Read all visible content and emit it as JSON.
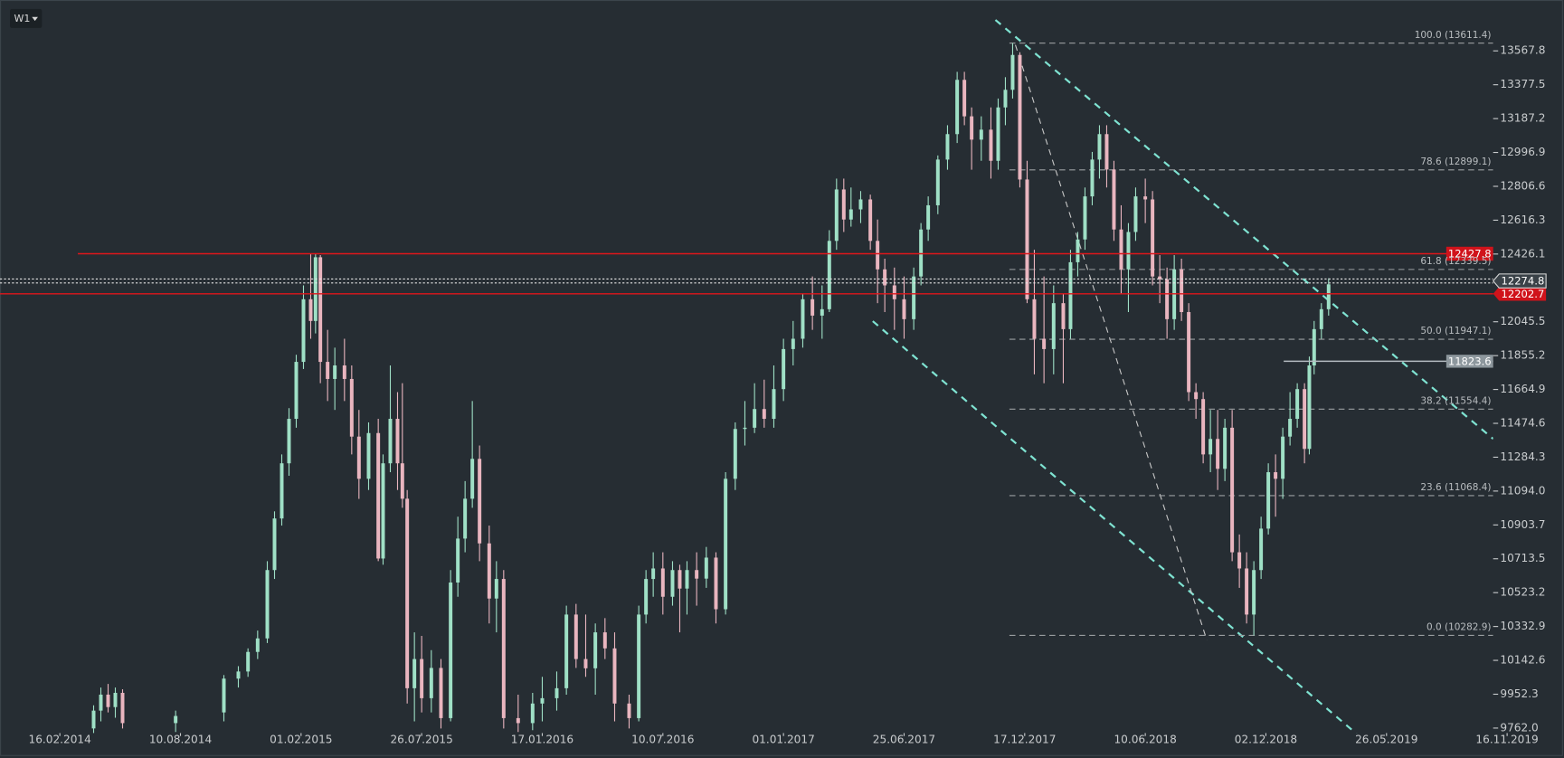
{
  "toolbar": {
    "timeframe": "W1"
  },
  "chart_data": {
    "type": "candlestick",
    "bull_color": "#9fe0c6",
    "bear_color": "#e9b5bf",
    "xlim": [
      -12.4,
      300
    ],
    "xticks": [
      {
        "value": 0,
        "label": "16.02.2014"
      },
      {
        "value": 25,
        "label": "10.08.2014"
      },
      {
        "value": 50,
        "label": "01.02.2015"
      },
      {
        "value": 75,
        "label": "26.07.2015"
      },
      {
        "value": 100,
        "label": "17.01.2016"
      },
      {
        "value": 125,
        "label": "10.07.2016"
      },
      {
        "value": 150,
        "label": "01.01.2017"
      },
      {
        "value": 175,
        "label": "25.06.2017"
      },
      {
        "value": 200,
        "label": "17.12.2017"
      },
      {
        "value": 225,
        "label": "10.06.2018"
      },
      {
        "value": 250,
        "label": "02.12.2018"
      },
      {
        "value": 275,
        "label": "26.05.2019"
      },
      {
        "value": 300,
        "label": "16.11.2019"
      }
    ],
    "ylim": [
      9734,
      13853.7
    ],
    "yticks": [
      13567.8,
      13377.5,
      13187.2,
      12996.9,
      12806.6,
      12616.3,
      12426.1,
      12045.5,
      11855.2,
      11664.9,
      11474.6,
      11284.3,
      {
        "value": 11094,
        "label": "11094.0"
      },
      10903.7,
      10713.5,
      10523.2,
      10332.9,
      10142.6,
      9952.3,
      {
        "value": 9762,
        "label": "9762.0"
      }
    ],
    "red_levels": [
      12427.8,
      12202.7
    ],
    "last_price": 12274.8,
    "gray_level": 11823.6,
    "fib_levels": [
      {
        "value": 13611.4,
        "label": "100.0 (13611.4)"
      },
      {
        "value": 12899.1,
        "label": "78.6 (12899.1)"
      },
      {
        "value": 12339.5,
        "label": "61.8 (12339.5)"
      },
      {
        "value": 11947.1,
        "label": "50.0 (11947.1)"
      },
      {
        "value": 11554.4,
        "label": "38.2 (11554.4)"
      },
      {
        "value": 11068.4,
        "label": "23.6 (11068.4)"
      },
      {
        "value": 10282.9,
        "label": "0.0 (10282.9)"
      }
    ],
    "candles": [
      {
        "x": 7,
        "o": 9760,
        "h": 9890,
        "l": 9700,
        "c": 9860
      },
      {
        "x": 8.5,
        "o": 9860,
        "h": 9990,
        "l": 9800,
        "c": 9950
      },
      {
        "x": 10,
        "o": 9950,
        "h": 10010,
        "l": 9850,
        "c": 9880
      },
      {
        "x": 11.5,
        "o": 9880,
        "h": 9990,
        "l": 9820,
        "c": 9960
      },
      {
        "x": 13,
        "o": 9960,
        "h": 9980,
        "l": 9760,
        "c": 9790
      },
      {
        "x": 24,
        "o": 9790,
        "h": 9860,
        "l": 9740,
        "c": 9830
      },
      {
        "x": 34,
        "o": 9850,
        "h": 10060,
        "l": 9800,
        "c": 10040
      },
      {
        "x": 37,
        "o": 10040,
        "h": 10110,
        "l": 9990,
        "c": 10080
      },
      {
        "x": 39,
        "o": 10080,
        "h": 10210,
        "l": 10050,
        "c": 10190
      },
      {
        "x": 41,
        "o": 10190,
        "h": 10310,
        "l": 10150,
        "c": 10266
      },
      {
        "x": 43,
        "o": 10266,
        "h": 10700,
        "l": 10240,
        "c": 10650
      },
      {
        "x": 44.5,
        "o": 10650,
        "h": 10980,
        "l": 10600,
        "c": 10940
      },
      {
        "x": 46,
        "o": 10940,
        "h": 11300,
        "l": 10900,
        "c": 11250
      },
      {
        "x": 47.5,
        "o": 11250,
        "h": 11560,
        "l": 11180,
        "c": 11500
      },
      {
        "x": 49,
        "o": 11500,
        "h": 11860,
        "l": 11450,
        "c": 11820
      },
      {
        "x": 50.5,
        "o": 11820,
        "h": 12250,
        "l": 11780,
        "c": 12172
      },
      {
        "x": 52,
        "o": 12172,
        "h": 12427,
        "l": 11950,
        "c": 12050
      },
      {
        "x": 53,
        "o": 12050,
        "h": 12427,
        "l": 11980,
        "c": 12408
      },
      {
        "x": 54,
        "o": 12408,
        "h": 12420,
        "l": 11700,
        "c": 11820
      },
      {
        "x": 55.5,
        "o": 11820,
        "h": 12000,
        "l": 11600,
        "c": 11724
      },
      {
        "x": 57,
        "o": 11724,
        "h": 11900,
        "l": 11550,
        "c": 11800
      },
      {
        "x": 59,
        "o": 11800,
        "h": 11950,
        "l": 11600,
        "c": 11724
      },
      {
        "x": 60.5,
        "o": 11724,
        "h": 11800,
        "l": 11300,
        "c": 11400
      },
      {
        "x": 62,
        "o": 11400,
        "h": 11550,
        "l": 11050,
        "c": 11163
      },
      {
        "x": 64,
        "o": 11163,
        "h": 11480,
        "l": 11100,
        "c": 11420
      },
      {
        "x": 66,
        "o": 11420,
        "h": 11500,
        "l": 10700,
        "c": 10715
      },
      {
        "x": 67,
        "o": 10715,
        "h": 11300,
        "l": 10680,
        "c": 11250
      },
      {
        "x": 68.5,
        "o": 11250,
        "h": 11800,
        "l": 11200,
        "c": 11500
      },
      {
        "x": 70,
        "o": 11500,
        "h": 11650,
        "l": 11100,
        "c": 11250
      },
      {
        "x": 71,
        "o": 11250,
        "h": 11700,
        "l": 11000,
        "c": 11051
      },
      {
        "x": 72,
        "o": 11051,
        "h": 11100,
        "l": 9900,
        "c": 9986
      },
      {
        "x": 73.5,
        "o": 9986,
        "h": 10300,
        "l": 9800,
        "c": 10150
      },
      {
        "x": 75,
        "o": 10150,
        "h": 10280,
        "l": 9850,
        "c": 9930
      },
      {
        "x": 77,
        "o": 9930,
        "h": 10200,
        "l": 9850,
        "c": 10100
      },
      {
        "x": 79,
        "o": 10100,
        "h": 10150,
        "l": 9760,
        "c": 9818
      },
      {
        "x": 81,
        "o": 9818,
        "h": 10650,
        "l": 9800,
        "c": 10580
      },
      {
        "x": 82.5,
        "o": 10580,
        "h": 10950,
        "l": 10500,
        "c": 10827
      },
      {
        "x": 84,
        "o": 10827,
        "h": 11150,
        "l": 10750,
        "c": 11051
      },
      {
        "x": 85.5,
        "o": 11051,
        "h": 11600,
        "l": 11000,
        "c": 11275
      },
      {
        "x": 87,
        "o": 11275,
        "h": 11350,
        "l": 10700,
        "c": 10800
      },
      {
        "x": 89,
        "o": 10800,
        "h": 10900,
        "l": 10350,
        "c": 10490
      },
      {
        "x": 90.5,
        "o": 10490,
        "h": 10700,
        "l": 10300,
        "c": 10600
      },
      {
        "x": 92,
        "o": 10600,
        "h": 10650,
        "l": 9760,
        "c": 9818
      },
      {
        "x": 95,
        "o": 9818,
        "h": 9950,
        "l": 9740,
        "c": 9790
      },
      {
        "x": 98,
        "o": 9790,
        "h": 9960,
        "l": 9750,
        "c": 9900
      },
      {
        "x": 100,
        "o": 9900,
        "h": 10050,
        "l": 9800,
        "c": 9930
      },
      {
        "x": 103,
        "o": 9930,
        "h": 10080,
        "l": 9860,
        "c": 9986
      },
      {
        "x": 105,
        "o": 9986,
        "h": 10450,
        "l": 9950,
        "c": 10400
      },
      {
        "x": 107,
        "o": 10400,
        "h": 10460,
        "l": 10100,
        "c": 10150
      },
      {
        "x": 109,
        "o": 10150,
        "h": 10400,
        "l": 10050,
        "c": 10098
      },
      {
        "x": 111,
        "o": 10098,
        "h": 10350,
        "l": 9950,
        "c": 10300
      },
      {
        "x": 113,
        "o": 10300,
        "h": 10380,
        "l": 10150,
        "c": 10210
      },
      {
        "x": 115,
        "o": 10210,
        "h": 10300,
        "l": 9800,
        "c": 9900
      },
      {
        "x": 118,
        "o": 9900,
        "h": 9950,
        "l": 9760,
        "c": 9818
      },
      {
        "x": 120,
        "o": 9818,
        "h": 10450,
        "l": 9800,
        "c": 10400
      },
      {
        "x": 121.5,
        "o": 10400,
        "h": 10650,
        "l": 10350,
        "c": 10600
      },
      {
        "x": 123,
        "o": 10600,
        "h": 10750,
        "l": 10500,
        "c": 10659
      },
      {
        "x": 125,
        "o": 10659,
        "h": 10750,
        "l": 10400,
        "c": 10500
      },
      {
        "x": 127,
        "o": 10500,
        "h": 10700,
        "l": 10450,
        "c": 10650
      },
      {
        "x": 128.5,
        "o": 10650,
        "h": 10680,
        "l": 10300,
        "c": 10546
      },
      {
        "x": 130,
        "o": 10546,
        "h": 10700,
        "l": 10400,
        "c": 10650
      },
      {
        "x": 132,
        "o": 10650,
        "h": 10750,
        "l": 10450,
        "c": 10602
      },
      {
        "x": 134,
        "o": 10602,
        "h": 10780,
        "l": 10550,
        "c": 10720
      },
      {
        "x": 136,
        "o": 10720,
        "h": 10750,
        "l": 10350,
        "c": 10430
      },
      {
        "x": 138,
        "o": 10430,
        "h": 11200,
        "l": 10400,
        "c": 11163
      },
      {
        "x": 140,
        "o": 11163,
        "h": 11480,
        "l": 11100,
        "c": 11443
      },
      {
        "x": 142,
        "o": 11443,
        "h": 11600,
        "l": 11350,
        "c": 11450
      },
      {
        "x": 144,
        "o": 11450,
        "h": 11700,
        "l": 11420,
        "c": 11555
      },
      {
        "x": 146,
        "o": 11555,
        "h": 11720,
        "l": 11450,
        "c": 11500
      },
      {
        "x": 148,
        "o": 11500,
        "h": 11800,
        "l": 11450,
        "c": 11667
      },
      {
        "x": 150,
        "o": 11667,
        "h": 11950,
        "l": 11600,
        "c": 11892
      },
      {
        "x": 152,
        "o": 11892,
        "h": 12050,
        "l": 11800,
        "c": 11950
      },
      {
        "x": 154,
        "o": 11950,
        "h": 12200,
        "l": 11900,
        "c": 12172
      },
      {
        "x": 156,
        "o": 12172,
        "h": 12300,
        "l": 12000,
        "c": 12080
      },
      {
        "x": 158,
        "o": 12080,
        "h": 12250,
        "l": 11950,
        "c": 12116
      },
      {
        "x": 159.5,
        "o": 12116,
        "h": 12560,
        "l": 12100,
        "c": 12500
      },
      {
        "x": 161,
        "o": 12500,
        "h": 12850,
        "l": 12450,
        "c": 12789
      },
      {
        "x": 162.5,
        "o": 12789,
        "h": 12850,
        "l": 12550,
        "c": 12620
      },
      {
        "x": 164,
        "o": 12620,
        "h": 12800,
        "l": 12580,
        "c": 12677
      },
      {
        "x": 166,
        "o": 12677,
        "h": 12780,
        "l": 12600,
        "c": 12733
      },
      {
        "x": 168,
        "o": 12733,
        "h": 12760,
        "l": 12450,
        "c": 12500
      },
      {
        "x": 169.5,
        "o": 12500,
        "h": 12620,
        "l": 12150,
        "c": 12340
      },
      {
        "x": 171,
        "o": 12340,
        "h": 12400,
        "l": 12100,
        "c": 12250
      },
      {
        "x": 173,
        "o": 12250,
        "h": 12350,
        "l": 12000,
        "c": 12172
      },
      {
        "x": 175,
        "o": 12172,
        "h": 12300,
        "l": 11950,
        "c": 12060
      },
      {
        "x": 177,
        "o": 12060,
        "h": 12350,
        "l": 12000,
        "c": 12300
      },
      {
        "x": 178.5,
        "o": 12300,
        "h": 12600,
        "l": 12250,
        "c": 12564
      },
      {
        "x": 180,
        "o": 12564,
        "h": 12750,
        "l": 12500,
        "c": 12700
      },
      {
        "x": 182,
        "o": 12700,
        "h": 12980,
        "l": 12650,
        "c": 12957
      },
      {
        "x": 184,
        "o": 12957,
        "h": 13150,
        "l": 12900,
        "c": 13100
      },
      {
        "x": 186,
        "o": 13100,
        "h": 13450,
        "l": 13050,
        "c": 13405
      },
      {
        "x": 187.5,
        "o": 13405,
        "h": 13450,
        "l": 13150,
        "c": 13200
      },
      {
        "x": 189,
        "o": 13200,
        "h": 13250,
        "l": 12900,
        "c": 13069
      },
      {
        "x": 191,
        "o": 13069,
        "h": 13200,
        "l": 12950,
        "c": 13125
      },
      {
        "x": 193,
        "o": 13125,
        "h": 13250,
        "l": 12850,
        "c": 12950
      },
      {
        "x": 194.5,
        "o": 12950,
        "h": 13300,
        "l": 12900,
        "c": 13250
      },
      {
        "x": 196,
        "o": 13250,
        "h": 13420,
        "l": 13150,
        "c": 13349
      },
      {
        "x": 197.5,
        "o": 13349,
        "h": 13611,
        "l": 13300,
        "c": 13545
      },
      {
        "x": 199,
        "o": 13545,
        "h": 13560,
        "l": 12800,
        "c": 12845
      },
      {
        "x": 200.5,
        "o": 12845,
        "h": 12950,
        "l": 12150,
        "c": 12172
      },
      {
        "x": 202,
        "o": 12172,
        "h": 12450,
        "l": 11750,
        "c": 11950
      },
      {
        "x": 204,
        "o": 11950,
        "h": 12300,
        "l": 11700,
        "c": 11892
      },
      {
        "x": 206,
        "o": 11892,
        "h": 12250,
        "l": 11750,
        "c": 12150
      },
      {
        "x": 208,
        "o": 12150,
        "h": 12200,
        "l": 11700,
        "c": 12004
      },
      {
        "x": 209.5,
        "o": 12004,
        "h": 12450,
        "l": 11950,
        "c": 12380
      },
      {
        "x": 211,
        "o": 12380,
        "h": 12550,
        "l": 12300,
        "c": 12508
      },
      {
        "x": 212.5,
        "o": 12508,
        "h": 12800,
        "l": 12450,
        "c": 12750
      },
      {
        "x": 214,
        "o": 12750,
        "h": 13000,
        "l": 12700,
        "c": 12957
      },
      {
        "x": 215.5,
        "o": 12957,
        "h": 13150,
        "l": 12850,
        "c": 13100
      },
      {
        "x": 217,
        "o": 13100,
        "h": 13150,
        "l": 12800,
        "c": 12901
      },
      {
        "x": 218.5,
        "o": 12901,
        "h": 12950,
        "l": 12500,
        "c": 12564
      },
      {
        "x": 220,
        "o": 12564,
        "h": 12700,
        "l": 12200,
        "c": 12340
      },
      {
        "x": 221.5,
        "o": 12340,
        "h": 12600,
        "l": 12100,
        "c": 12550
      },
      {
        "x": 223,
        "o": 12550,
        "h": 12800,
        "l": 12500,
        "c": 12750
      },
      {
        "x": 225,
        "o": 12750,
        "h": 12850,
        "l": 12600,
        "c": 12733
      },
      {
        "x": 226.5,
        "o": 12733,
        "h": 12780,
        "l": 12250,
        "c": 12300
      },
      {
        "x": 228,
        "o": 12300,
        "h": 12420,
        "l": 12150,
        "c": 12284
      },
      {
        "x": 229.5,
        "o": 12284,
        "h": 12350,
        "l": 11950,
        "c": 12060
      },
      {
        "x": 231,
        "o": 12060,
        "h": 12420,
        "l": 12000,
        "c": 12340
      },
      {
        "x": 232.5,
        "o": 12340,
        "h": 12400,
        "l": 12050,
        "c": 12100
      },
      {
        "x": 234,
        "o": 12100,
        "h": 12150,
        "l": 11600,
        "c": 11650
      },
      {
        "x": 235.5,
        "o": 11650,
        "h": 11700,
        "l": 11500,
        "c": 11611
      },
      {
        "x": 237,
        "o": 11611,
        "h": 11650,
        "l": 11250,
        "c": 11300
      },
      {
        "x": 238.5,
        "o": 11300,
        "h": 11550,
        "l": 11200,
        "c": 11387
      },
      {
        "x": 240,
        "o": 11387,
        "h": 11550,
        "l": 11100,
        "c": 11219
      },
      {
        "x": 241.5,
        "o": 11219,
        "h": 11500,
        "l": 11150,
        "c": 11450
      },
      {
        "x": 243,
        "o": 11450,
        "h": 11550,
        "l": 10700,
        "c": 10750
      },
      {
        "x": 244.5,
        "o": 10750,
        "h": 10850,
        "l": 10550,
        "c": 10659
      },
      {
        "x": 246,
        "o": 10659,
        "h": 10750,
        "l": 10350,
        "c": 10400
      },
      {
        "x": 247.5,
        "o": 10400,
        "h": 10700,
        "l": 10283,
        "c": 10650
      },
      {
        "x": 249,
        "o": 10650,
        "h": 10950,
        "l": 10600,
        "c": 10883
      },
      {
        "x": 250.5,
        "o": 10883,
        "h": 11250,
        "l": 10850,
        "c": 11200
      },
      {
        "x": 252,
        "o": 11200,
        "h": 11300,
        "l": 10950,
        "c": 11163
      },
      {
        "x": 253.5,
        "o": 11163,
        "h": 11450,
        "l": 11050,
        "c": 11400
      },
      {
        "x": 255,
        "o": 11400,
        "h": 11650,
        "l": 11350,
        "c": 11500
      },
      {
        "x": 256.5,
        "o": 11500,
        "h": 11700,
        "l": 11450,
        "c": 11667
      },
      {
        "x": 258,
        "o": 11667,
        "h": 11700,
        "l": 11250,
        "c": 11331
      },
      {
        "x": 259,
        "o": 11331,
        "h": 11850,
        "l": 11300,
        "c": 11800
      },
      {
        "x": 260,
        "o": 11800,
        "h": 12050,
        "l": 11750,
        "c": 12004
      },
      {
        "x": 261.5,
        "o": 12004,
        "h": 12150,
        "l": 11950,
        "c": 12116
      },
      {
        "x": 263,
        "o": 12116,
        "h": 12290,
        "l": 12080,
        "c": 12256
      }
    ]
  }
}
